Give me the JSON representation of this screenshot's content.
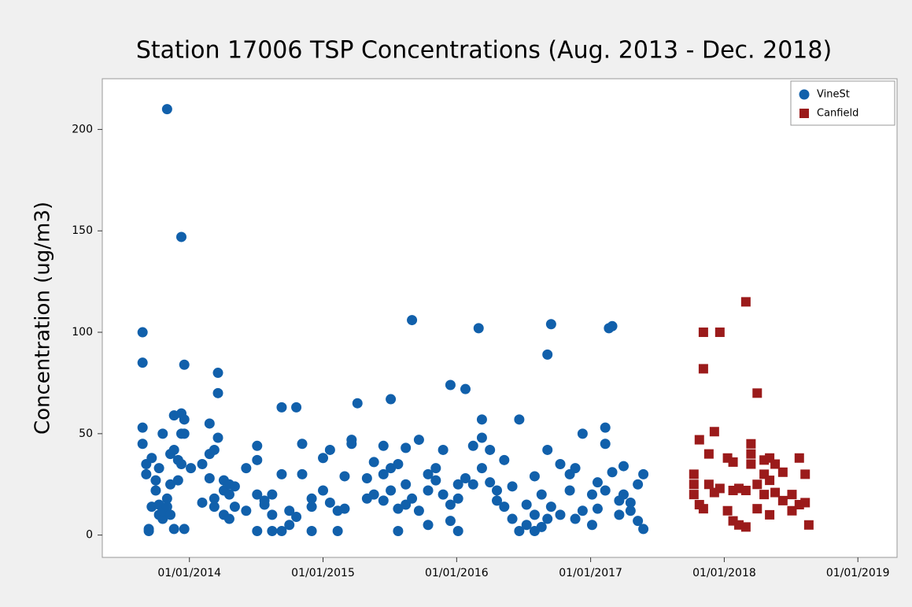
{
  "chart_data": {
    "type": "scatter",
    "title": "Station 17006 TSP Concentrations (Aug. 2013 - Dec. 2018)",
    "ylabel": "Concentration (ug/m3)",
    "xlim": [
      "2013-05-08",
      "2019-04-18"
    ],
    "xticks": [
      {
        "value": "2014-01-01",
        "label": "01/01/2014"
      },
      {
        "value": "2015-01-01",
        "label": "01/01/2015"
      },
      {
        "value": "2016-01-01",
        "label": "01/01/2016"
      },
      {
        "value": "2017-01-01",
        "label": "01/01/2017"
      },
      {
        "value": "2018-01-01",
        "label": "01/01/2018"
      },
      {
        "value": "2019-01-01",
        "label": "01/01/2019"
      }
    ],
    "ylim": [
      -11,
      225
    ],
    "yticks": [
      0,
      50,
      100,
      150,
      200
    ],
    "legend": "upper right",
    "series": [
      {
        "name": "VineSt",
        "color": "#1160ab",
        "marker": "circle",
        "x": [
          "2013-08-26",
          "2013-08-26",
          "2013-08-26",
          "2013-08-26",
          "2013-09-05",
          "2013-09-05",
          "2013-09-12",
          "2013-09-12",
          "2013-09-20",
          "2013-09-20",
          "2013-10-01",
          "2013-10-01",
          "2013-10-10",
          "2013-10-10",
          "2013-10-10",
          "2013-10-20",
          "2013-10-20",
          "2013-10-20",
          "2013-11-01",
          "2013-11-01",
          "2013-11-01",
          "2013-11-10",
          "2013-11-10",
          "2013-11-10",
          "2013-11-20",
          "2013-11-20",
          "2013-11-20",
          "2013-12-01",
          "2013-12-01",
          "2013-12-10",
          "2013-12-10",
          "2013-12-10",
          "2013-12-10",
          "2013-12-18",
          "2013-12-18",
          "2013-12-18",
          "2013-12-18",
          "2014-01-05",
          "2014-02-05",
          "2014-02-05",
          "2014-02-25",
          "2014-02-25",
          "2014-02-25",
          "2014-03-10",
          "2014-03-10",
          "2014-03-10",
          "2014-03-20",
          "2014-03-20",
          "2014-03-20",
          "2014-04-05",
          "2014-04-05",
          "2014-04-05",
          "2014-04-20",
          "2014-04-20",
          "2014-04-20",
          "2014-05-05",
          "2014-05-05",
          "2014-06-05",
          "2014-06-05",
          "2014-07-05",
          "2014-07-05",
          "2014-07-05",
          "2014-07-05",
          "2014-07-25",
          "2014-07-25",
          "2014-08-15",
          "2014-08-15",
          "2014-08-15",
          "2014-09-10",
          "2014-09-10",
          "2014-09-10",
          "2014-10-01",
          "2014-10-01",
          "2014-10-20",
          "2014-10-20",
          "2014-11-05",
          "2014-11-05",
          "2014-12-01",
          "2014-12-01",
          "2014-12-01",
          "2015-01-01",
          "2015-01-01",
          "2015-01-20",
          "2015-01-20",
          "2015-02-10",
          "2015-02-10",
          "2015-03-01",
          "2015-03-01",
          "2015-03-20",
          "2015-03-20",
          "2015-04-05",
          "2015-05-01",
          "2015-05-01",
          "2015-05-20",
          "2015-05-20",
          "2015-06-15",
          "2015-06-15",
          "2015-06-15",
          "2015-07-05",
          "2015-07-05",
          "2015-07-05",
          "2015-07-25",
          "2015-07-25",
          "2015-07-25",
          "2015-08-15",
          "2015-08-15",
          "2015-08-15",
          "2015-09-01",
          "2015-09-01",
          "2015-09-20",
          "2015-09-20",
          "2015-10-15",
          "2015-10-15",
          "2015-10-15",
          "2015-11-05",
          "2015-11-05",
          "2015-11-25",
          "2015-11-25",
          "2015-12-15",
          "2015-12-15",
          "2015-12-15",
          "2016-01-05",
          "2016-01-05",
          "2016-01-05",
          "2016-01-25",
          "2016-01-25",
          "2016-02-15",
          "2016-02-15",
          "2016-03-01",
          "2016-03-10",
          "2016-03-10",
          "2016-03-10",
          "2016-04-01",
          "2016-04-01",
          "2016-04-20",
          "2016-04-20",
          "2016-05-10",
          "2016-05-10",
          "2016-06-01",
          "2016-06-01",
          "2016-06-20",
          "2016-06-20",
          "2016-07-10",
          "2016-07-10",
          "2016-08-01",
          "2016-08-01",
          "2016-08-01",
          "2016-08-20",
          "2016-08-20",
          "2016-09-05",
          "2016-09-05",
          "2016-09-05",
          "2016-09-15",
          "2016-09-15",
          "2016-10-10",
          "2016-10-10",
          "2016-11-05",
          "2016-11-05",
          "2016-11-20",
          "2016-11-20",
          "2016-12-10",
          "2016-12-10",
          "2017-01-05",
          "2017-01-05",
          "2017-01-20",
          "2017-01-20",
          "2017-02-10",
          "2017-02-10",
          "2017-02-10",
          "2017-02-20",
          "2017-03-01",
          "2017-03-01",
          "2017-03-20",
          "2017-03-20",
          "2017-04-01",
          "2017-04-01",
          "2017-04-20",
          "2017-04-20",
          "2017-05-10",
          "2017-05-10",
          "2017-05-25",
          "2017-05-25"
        ],
        "values": [
          100,
          85,
          53,
          45,
          35,
          30,
          3,
          2,
          14,
          38,
          27,
          22,
          15,
          10,
          33,
          50,
          8,
          12,
          210,
          18,
          14,
          40,
          25,
          10,
          59,
          42,
          3,
          37,
          27,
          147,
          60,
          50,
          35,
          84,
          57,
          3,
          50,
          33,
          35,
          16,
          40,
          28,
          55,
          42,
          14,
          18,
          80,
          70,
          48,
          27,
          22,
          10,
          25,
          20,
          8,
          24,
          14,
          33,
          12,
          44,
          37,
          20,
          2,
          17,
          15,
          2,
          20,
          10,
          63,
          30,
          2,
          12,
          5,
          63,
          9,
          45,
          30,
          14,
          18,
          2,
          38,
          22,
          42,
          16,
          12,
          2,
          29,
          13,
          47,
          45,
          65,
          28,
          18,
          36,
          20,
          44,
          17,
          30,
          67,
          33,
          22,
          13,
          2,
          35,
          43,
          15,
          25,
          106,
          18,
          47,
          12,
          30,
          22,
          5,
          33,
          27,
          42,
          20,
          74,
          15,
          7,
          25,
          2,
          18,
          72,
          28,
          44,
          25,
          102,
          57,
          33,
          48,
          26,
          42,
          22,
          17,
          37,
          14,
          8,
          24,
          57,
          2,
          15,
          5,
          29,
          10,
          2,
          4,
          20,
          89,
          42,
          8,
          104,
          14,
          35,
          10,
          30,
          22,
          8,
          33,
          50,
          12,
          5,
          20,
          26,
          13,
          53,
          45,
          22,
          102,
          103,
          31,
          17,
          10,
          34,
          20,
          16,
          12,
          25,
          7,
          30,
          3
        ]
      },
      {
        "name": "Canfield",
        "color": "#9b1b1b",
        "marker": "square",
        "x": [
          "2017-10-10",
          "2017-10-10",
          "2017-10-10",
          "2017-10-25",
          "2017-10-25",
          "2017-11-05",
          "2017-11-05",
          "2017-11-05",
          "2017-11-20",
          "2017-11-20",
          "2017-12-05",
          "2017-12-05",
          "2017-12-20",
          "2017-12-20",
          "2018-01-10",
          "2018-01-10",
          "2018-01-25",
          "2018-01-25",
          "2018-01-25",
          "2018-02-10",
          "2018-02-10",
          "2018-03-01",
          "2018-03-01",
          "2018-03-01",
          "2018-03-15",
          "2018-03-15",
          "2018-03-15",
          "2018-04-01",
          "2018-04-01",
          "2018-04-01",
          "2018-04-20",
          "2018-04-20",
          "2018-04-20",
          "2018-05-05",
          "2018-05-05",
          "2018-05-05",
          "2018-05-20",
          "2018-05-20",
          "2018-06-10",
          "2018-06-10",
          "2018-07-05",
          "2018-07-05",
          "2018-07-25",
          "2018-07-25",
          "2018-08-10",
          "2018-08-10",
          "2018-08-20"
        ],
        "values": [
          30,
          25,
          20,
          15,
          47,
          100,
          82,
          13,
          40,
          25,
          51,
          21,
          100,
          23,
          38,
          12,
          36,
          22,
          7,
          5,
          23,
          115,
          22,
          4,
          45,
          40,
          35,
          70,
          25,
          13,
          37,
          30,
          20,
          38,
          27,
          10,
          35,
          21,
          31,
          17,
          20,
          12,
          38,
          15,
          30,
          16,
          5
        ]
      }
    ]
  }
}
